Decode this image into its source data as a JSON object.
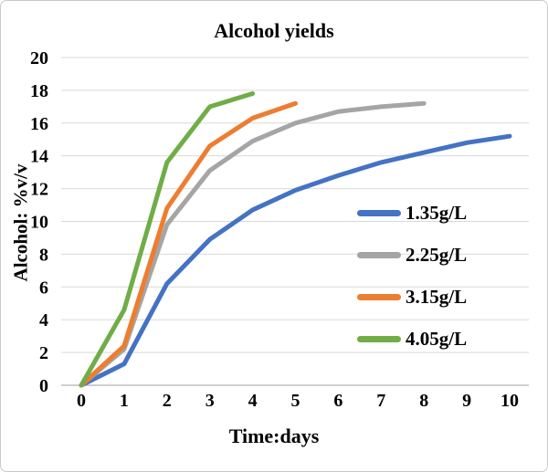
{
  "chart_data": {
    "type": "line",
    "title": "Alcohol yields",
    "xlabel": "Time:days",
    "ylabel": "Alcohol: %v/v",
    "xlim": [
      0,
      10
    ],
    "ylim": [
      0,
      20
    ],
    "x_ticks": [
      0,
      1,
      2,
      3,
      4,
      5,
      6,
      7,
      8,
      9,
      10
    ],
    "y_ticks": [
      0,
      2,
      4,
      6,
      8,
      10,
      12,
      14,
      16,
      18,
      20
    ],
    "grid": "horizontal",
    "legend_position": "inside-right-middle",
    "series": [
      {
        "name": "1.35g/L",
        "color": "#4472C4",
        "x": [
          0,
          1,
          2,
          3,
          4,
          5,
          6,
          7,
          8,
          9,
          10
        ],
        "y": [
          0,
          1.3,
          6.2,
          8.9,
          10.7,
          11.9,
          12.8,
          13.6,
          14.2,
          14.8,
          15.2
        ]
      },
      {
        "name": "2.25g/L",
        "color": "#A5A5A5",
        "x": [
          0,
          1,
          2,
          3,
          4,
          5,
          6,
          7,
          8
        ],
        "y": [
          0,
          2.2,
          9.8,
          13.1,
          14.9,
          16.0,
          16.7,
          17.0,
          17.2
        ]
      },
      {
        "name": "3.15g/L",
        "color": "#ED7D31",
        "x": [
          0,
          1,
          2,
          3,
          4,
          5
        ],
        "y": [
          0,
          2.4,
          10.8,
          14.6,
          16.3,
          17.2
        ]
      },
      {
        "name": "4.05g/L",
        "color": "#70AD47",
        "x": [
          0,
          1,
          2,
          3,
          4
        ],
        "y": [
          0,
          4.6,
          13.6,
          17.0,
          17.8
        ]
      }
    ],
    "colors": {
      "grid": "#D9D9D9",
      "axis": "#BFBFBF",
      "text": "#000000",
      "background": "#FFFFFF"
    }
  }
}
